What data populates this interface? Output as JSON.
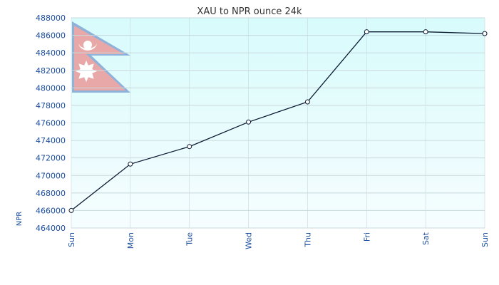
{
  "chart_data": {
    "type": "line",
    "title": "XAU to NPR ounce 24k",
    "xlabel": "",
    "ylabel": "NPR",
    "categories": [
      "Sun",
      "Mon",
      "Tue",
      "Wed",
      "Thu",
      "Fri",
      "Sat",
      "Sun"
    ],
    "series": [
      {
        "values": [
          466000,
          471300,
          473300,
          476100,
          478400,
          486400,
          486400,
          486200
        ]
      }
    ],
    "ylim": [
      464000,
      488000
    ],
    "yticks": [
      464000,
      466000,
      468000,
      470000,
      472000,
      474000,
      476000,
      478000,
      480000,
      482000,
      484000,
      486000,
      488000
    ],
    "grid": true,
    "legend": "none"
  },
  "colors": {
    "line": "#0b1a33",
    "marker_fill": "#ffffff",
    "grid": "#c8d8dc",
    "axis_text": "#1c4fa0",
    "title_text": "#333333",
    "bg_top": "#d8fbfb",
    "bg_bottom": "#f6fdff",
    "flag_red": "#e8a8a8",
    "flag_blue": "#8fb2da",
    "flag_white": "#ffffff"
  },
  "decoration": {
    "flag": "nepal-flag"
  }
}
